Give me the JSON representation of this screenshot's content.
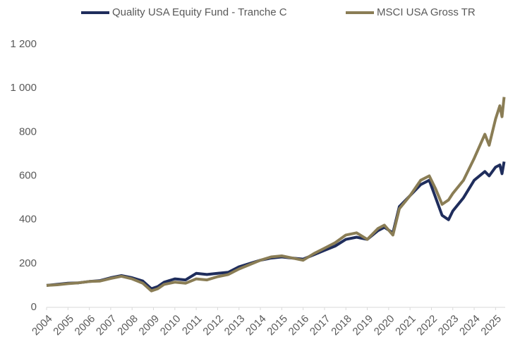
{
  "chart_data": {
    "type": "line",
    "x": [
      2004,
      2004.5,
      2005,
      2005.5,
      2006,
      2006.5,
      2007,
      2007.5,
      2008,
      2008.5,
      2008.9,
      2009.2,
      2009.5,
      2010,
      2010.5,
      2011,
      2011.5,
      2012,
      2012.5,
      2013,
      2013.5,
      2014,
      2014.5,
      2015,
      2015.5,
      2016,
      2016.5,
      2017,
      2017.5,
      2018,
      2018.5,
      2019,
      2019.5,
      2019.8,
      2020.2,
      2020.5,
      2021,
      2021.5,
      2021.9,
      2022.2,
      2022.5,
      2022.8,
      2023,
      2023.5,
      2024,
      2024.5,
      2024.7,
      2025,
      2025.2,
      2025.3,
      2025.4
    ],
    "series": [
      {
        "name": "Quality USA Equity Fund - Tranche C",
        "color": "#1f2d5c",
        "values": [
          100,
          105,
          110,
          112,
          118,
          122,
          135,
          145,
          135,
          120,
          85,
          95,
          115,
          130,
          125,
          155,
          150,
          155,
          160,
          185,
          200,
          215,
          225,
          230,
          225,
          220,
          240,
          260,
          280,
          310,
          320,
          310,
          350,
          365,
          340,
          460,
          510,
          560,
          580,
          500,
          420,
          400,
          440,
          500,
          580,
          620,
          600,
          640,
          650,
          610,
          665
        ]
      },
      {
        "name": "MSCI USA Gross TR",
        "color": "#8a7d55",
        "values": [
          100,
          103,
          108,
          112,
          118,
          120,
          132,
          142,
          130,
          110,
          75,
          85,
          105,
          115,
          110,
          130,
          125,
          140,
          150,
          175,
          195,
          215,
          230,
          235,
          225,
          215,
          245,
          270,
          295,
          330,
          340,
          310,
          360,
          375,
          330,
          450,
          510,
          580,
          600,
          540,
          470,
          490,
          520,
          580,
          680,
          790,
          740,
          860,
          920,
          870,
          960
        ]
      }
    ],
    "xlim": [
      2004,
      2025.45
    ],
    "xticks": [
      2004,
      2005,
      2006,
      2007,
      2008,
      2009,
      2010,
      2011,
      2012,
      2013,
      2014,
      2015,
      2016,
      2017,
      2018,
      2019,
      2020,
      2021,
      2022,
      2023,
      2024,
      2025
    ],
    "ylim": [
      0,
      1200
    ],
    "yticks": [
      0,
      200,
      400,
      600,
      800,
      {
        "value": 1000,
        "label": "1 000"
      },
      {
        "value": 1200,
        "label": "1 200"
      }
    ],
    "grid": false,
    "legend": "top"
  }
}
